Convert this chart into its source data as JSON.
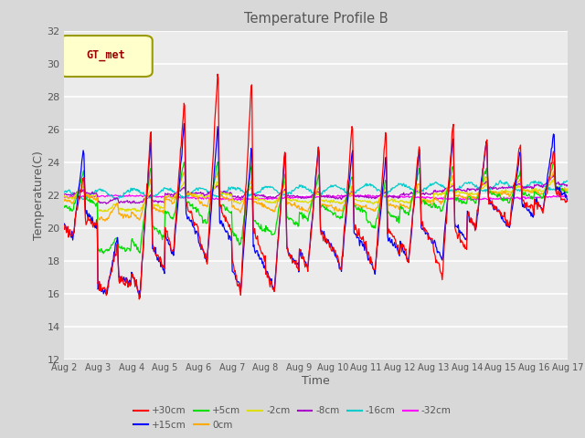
{
  "title": "Temperature Profile B",
  "xlabel": "Time",
  "ylabel": "Temperature(C)",
  "ylim": [
    12,
    32
  ],
  "xlim": [
    0,
    15
  ],
  "xtick_labels": [
    "Aug 2",
    "Aug 3",
    "Aug 4",
    "Aug 5",
    "Aug 6",
    "Aug 7",
    "Aug 8",
    "Aug 9",
    "Aug 10",
    "Aug 11",
    "Aug 12",
    "Aug 13",
    "Aug 14",
    "Aug 15",
    "Aug 16",
    "Aug 17"
  ],
  "ytick_labels": [
    "12",
    "14",
    "16",
    "18",
    "20",
    "22",
    "24",
    "26",
    "28",
    "30",
    "32"
  ],
  "ytick_values": [
    12,
    14,
    16,
    18,
    20,
    22,
    24,
    26,
    28,
    30,
    32
  ],
  "series_colors": {
    "+30cm": "#ff0000",
    "+15cm": "#0000ff",
    "+5cm": "#00dd00",
    "0cm": "#ffaa00",
    "-2cm": "#dddd00",
    "-8cm": "#aa00cc",
    "-16cm": "#00cccc",
    "-32cm": "#ff00ff"
  },
  "legend_label": "GT_met",
  "legend_bg": "#ffffcc",
  "legend_border": "#999900",
  "legend_text_color": "#990000",
  "plot_bg": "#ebebeb",
  "fig_bg": "#d8d8d8",
  "title_color": "#555555",
  "tick_color": "#555555"
}
